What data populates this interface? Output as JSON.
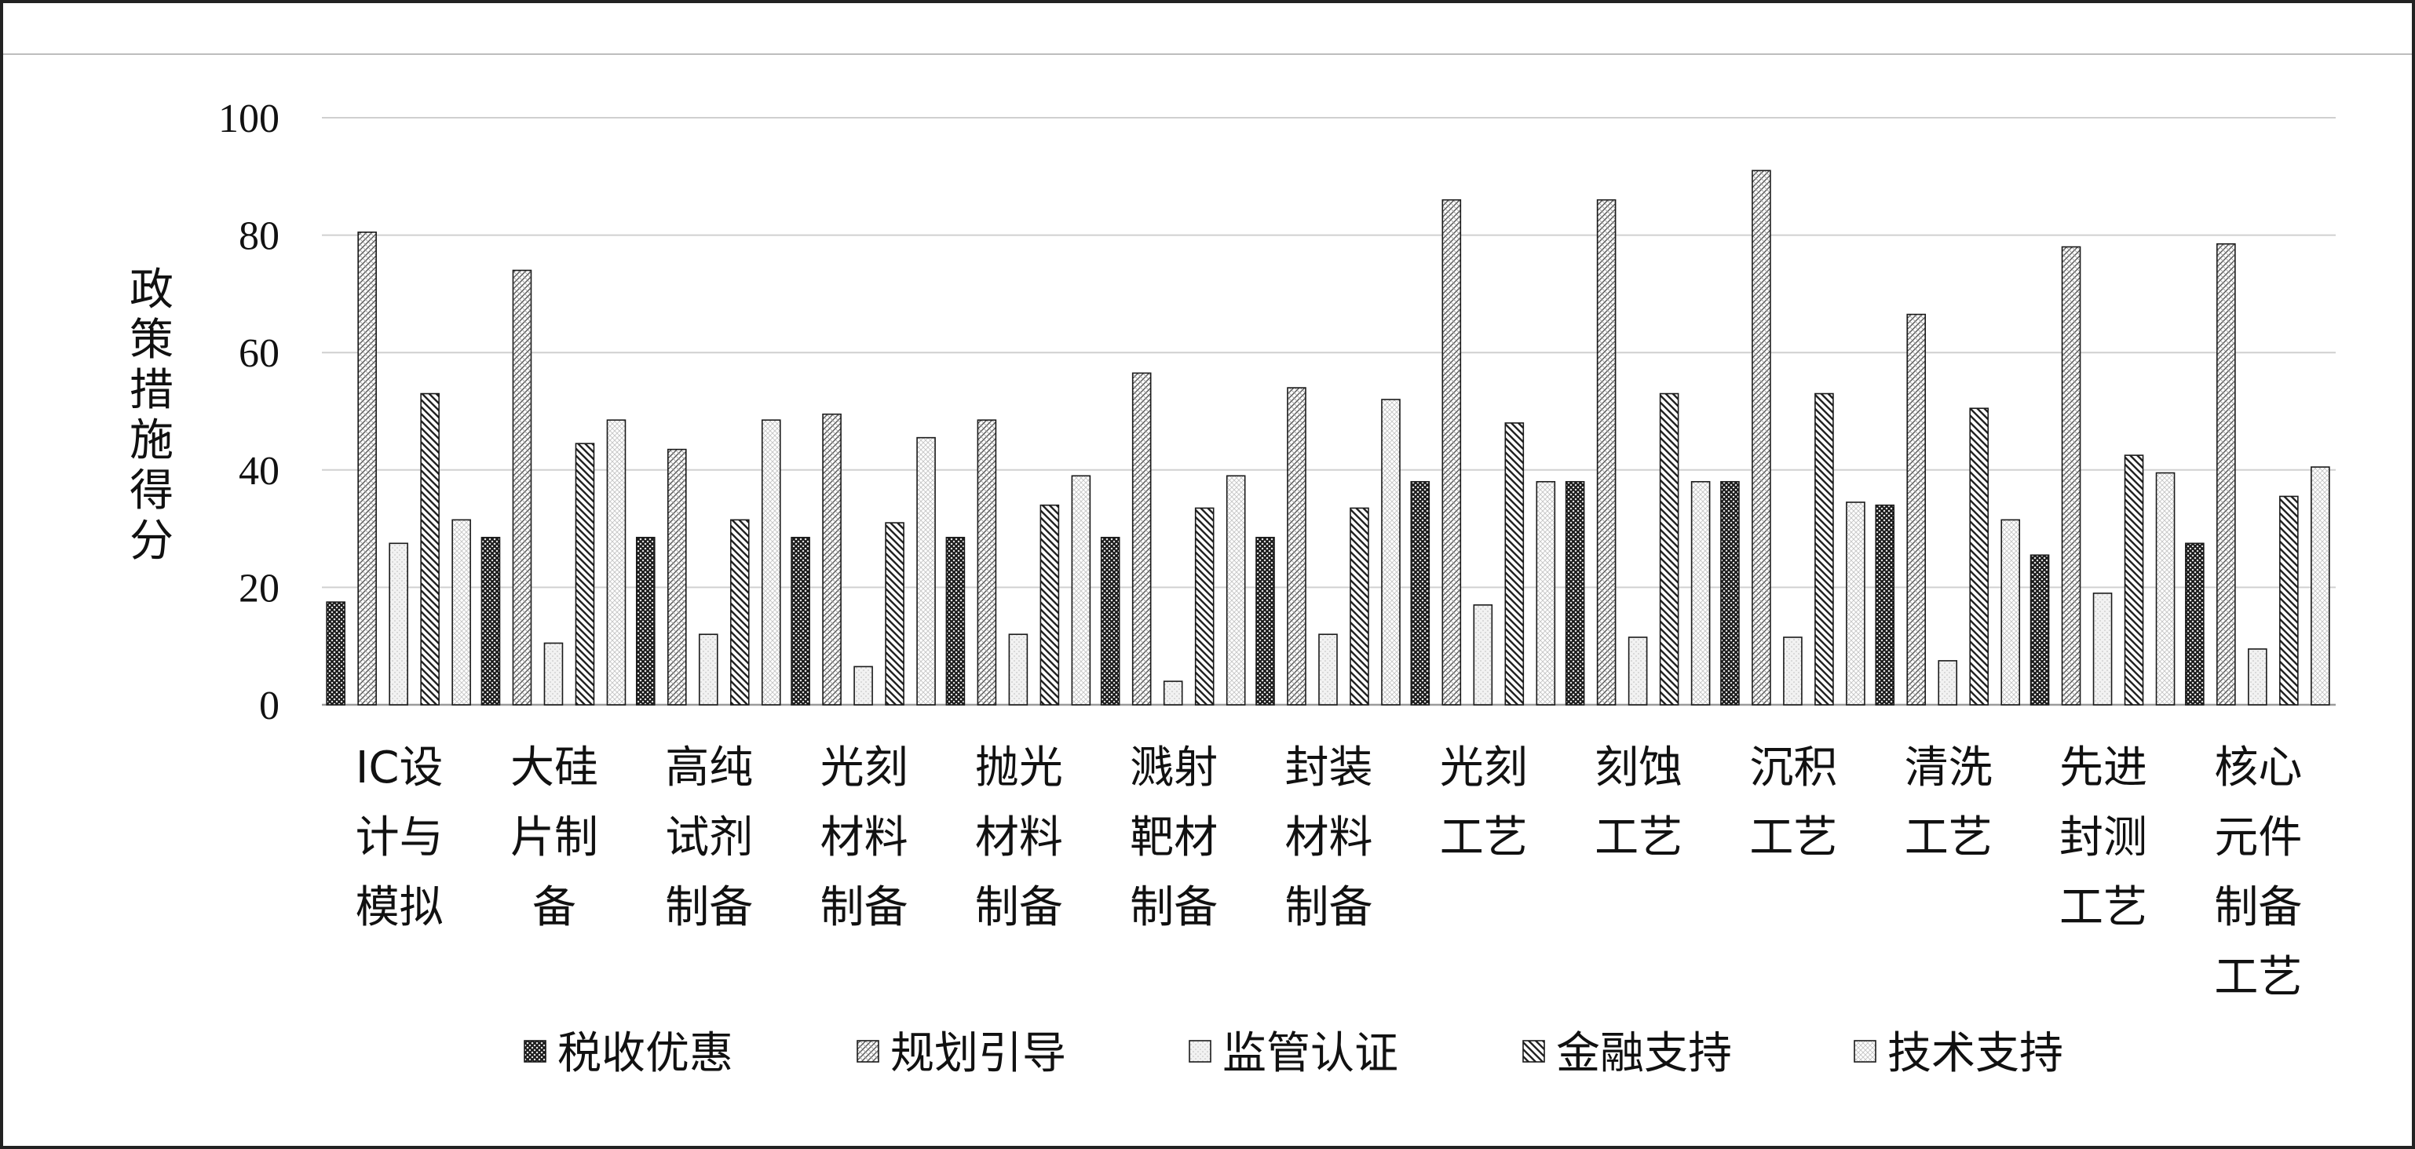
{
  "chart_data": {
    "type": "bar",
    "ylabel": "政策措施得分",
    "ylim": [
      0,
      100
    ],
    "yticks": [
      "0",
      "20",
      "40",
      "60",
      "80",
      "100"
    ],
    "grid": true,
    "legend_position": "bottom",
    "categories": [
      [
        "IC设",
        "计与",
        "模拟"
      ],
      [
        "大硅",
        "片制",
        "备"
      ],
      [
        "高纯",
        "试剂",
        "制备"
      ],
      [
        "光刻",
        "材料",
        "制备"
      ],
      [
        "抛光",
        "材料",
        "制备"
      ],
      [
        "溅射",
        "靶材",
        "制备"
      ],
      [
        "封装",
        "材料",
        "制备"
      ],
      [
        "光刻",
        "工艺"
      ],
      [
        "刻蚀",
        "工艺"
      ],
      [
        "沉积",
        "工艺"
      ],
      [
        "清洗",
        "工艺"
      ],
      [
        "先进",
        "封测",
        "工艺"
      ],
      [
        "核心",
        "元件",
        "制备",
        "工艺"
      ]
    ],
    "series": [
      {
        "name": "税收优惠",
        "pattern": "cross",
        "values": [
          17.5,
          28.5,
          28.5,
          28.5,
          28.5,
          28.5,
          28.5,
          38,
          38,
          38,
          34,
          25.5,
          27.5
        ]
      },
      {
        "name": "规划引导",
        "pattern": "dense-diag",
        "values": [
          80.5,
          74,
          43.5,
          49.5,
          48.5,
          56.5,
          54,
          86,
          86,
          91,
          66.5,
          78,
          78.5
        ]
      },
      {
        "name": "监管认证",
        "pattern": "light-dots",
        "values": [
          27.5,
          10.5,
          12,
          6.5,
          12,
          4,
          12,
          17,
          11.5,
          11.5,
          7.5,
          19,
          9.5
        ]
      },
      {
        "name": "金融支持",
        "pattern": "coarse-diag",
        "values": [
          53,
          44.5,
          31.5,
          31,
          34,
          33.5,
          33.5,
          48,
          53,
          53,
          50.5,
          42.5,
          35.5
        ]
      },
      {
        "name": "技术支持",
        "pattern": "light-grid",
        "values": [
          31.5,
          48.5,
          48.5,
          45.5,
          39,
          39,
          52,
          38,
          38,
          34.5,
          31.5,
          39.5,
          40.5
        ]
      }
    ]
  }
}
